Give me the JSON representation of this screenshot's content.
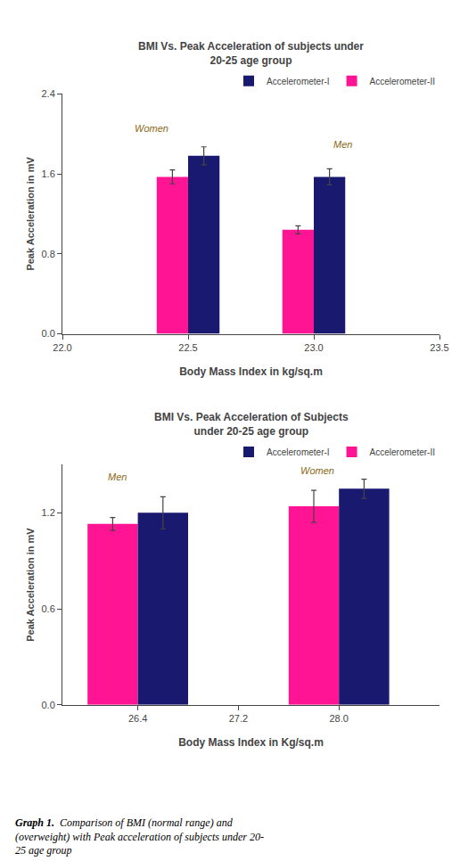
{
  "chart_data": [
    {
      "type": "bar",
      "title": "BMI Vs. Peak Acceleration of subjects under\n20-25 age group",
      "x_label": "Body Mass Index in kg/sq.m",
      "y_label": "Peak Acceleration in mV",
      "x": [
        22.5,
        23.0
      ],
      "series": [
        {
          "name": "Accelerometer-II",
          "color": "#FF1493",
          "values": [
            1.57,
            1.04
          ],
          "errors": [
            0.07,
            0.04
          ]
        },
        {
          "name": "Accelerometer-I",
          "color": "#191970",
          "values": [
            1.78,
            1.57
          ],
          "errors": [
            0.09,
            0.08
          ]
        }
      ],
      "xlim": [
        22.0,
        23.5
      ],
      "xticks": [
        {
          "value": 22.0,
          "label": "22.0"
        },
        22.5,
        {
          "value": 23.0,
          "label": "23.0"
        },
        23.5
      ],
      "ylim": [
        0.0,
        2.4
      ],
      "yticks": [
        {
          "value": 0.0,
          "label": "0.0"
        },
        0.8,
        1.6,
        2.4
      ],
      "annotations": [
        {
          "text": "Women",
          "x": 22.28,
          "y": 1.98,
          "color": "#8B6914"
        },
        {
          "text": "Men",
          "x": 23.07,
          "y": 1.82,
          "color": "#8B6914"
        }
      ],
      "grid": false
    },
    {
      "type": "bar",
      "title": "BMI Vs. Peak Acceleration of Subjects\nunder 20-25 age group",
      "x_label": "Body Mass Index in Kg/sq.m",
      "y_label": "Peak Acceleration in mV",
      "x": [
        26.4,
        28.0
      ],
      "series": [
        {
          "name": "Accelerometer-II",
          "color": "#FF1493",
          "values": [
            1.13,
            1.24
          ],
          "errors": [
            0.04,
            0.1
          ]
        },
        {
          "name": "Accelerometer-I",
          "color": "#191970",
          "values": [
            1.2,
            1.35
          ],
          "errors": [
            0.1,
            0.06
          ]
        }
      ],
      "xlim": [
        25.8,
        28.8
      ],
      "xticks": [
        26.4,
        27.2,
        {
          "value": 28.0,
          "label": "28.0"
        }
      ],
      "ylim": [
        0.0,
        1.5
      ],
      "yticks": [
        {
          "value": 0.0,
          "label": "0.0"
        },
        0.6,
        1.2
      ],
      "annotations": [
        {
          "text": "Men",
          "x": 26.15,
          "y": 1.38,
          "color": "#8B6914"
        },
        {
          "text": "Women",
          "x": 27.68,
          "y": 1.42,
          "color": "#8B6914"
        }
      ],
      "grid": false
    }
  ],
  "caption_bold": "Graph 1.",
  "caption": "  Comparison of BMI (normal range) and\n(overweight) with Peak acceleration of subjects under 20-\n25 age group"
}
